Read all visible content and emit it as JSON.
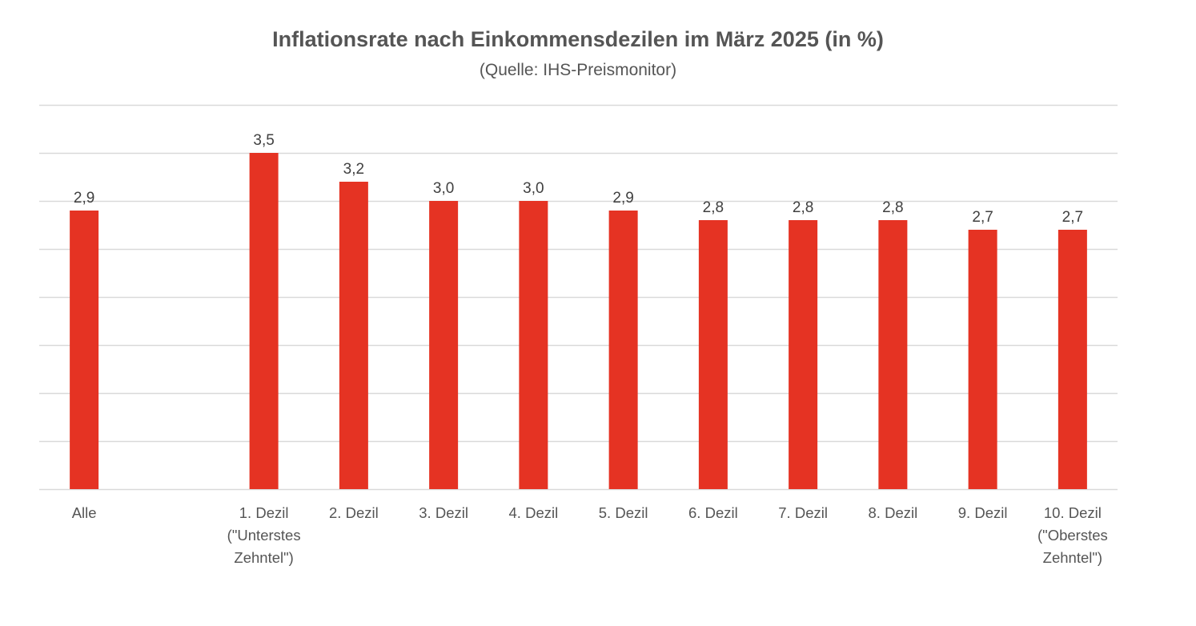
{
  "chart_data": {
    "type": "bar",
    "title": "Inflationsrate nach Einkommensdezilen im März 2025 (in %)",
    "subtitle": "(Quelle: IHS-Preismonitor)",
    "categories": [
      [
        "Alle"
      ],
      [],
      [
        "1. Dezil",
        "(\"Unterstes",
        "Zehntel\")"
      ],
      [
        "2. Dezil"
      ],
      [
        "3. Dezil"
      ],
      [
        "4. Dezil"
      ],
      [
        "5. Dezil"
      ],
      [
        "6. Dezil"
      ],
      [
        "7. Dezil"
      ],
      [
        "8. Dezil"
      ],
      [
        "9. Dezil"
      ],
      [
        "10. Dezil",
        "(\"Oberstes",
        "Zehntel\")"
      ]
    ],
    "values": [
      2.9,
      null,
      3.5,
      3.2,
      3.0,
      3.0,
      2.9,
      2.8,
      2.8,
      2.8,
      2.7,
      2.7
    ],
    "value_labels": [
      "2,9",
      "",
      "3,5",
      "3,2",
      "3,0",
      "3,0",
      "2,9",
      "2,8",
      "2,8",
      "2,8",
      "2,7",
      "2,7"
    ],
    "ylim": [
      0,
      4.0
    ],
    "ytick_step": 0.5,
    "y_axis_labels_shown": false,
    "grid": true,
    "legend": "none",
    "colors": {
      "bar": "#e53323",
      "grid": "#d9d9d9",
      "text": "#404040"
    }
  }
}
